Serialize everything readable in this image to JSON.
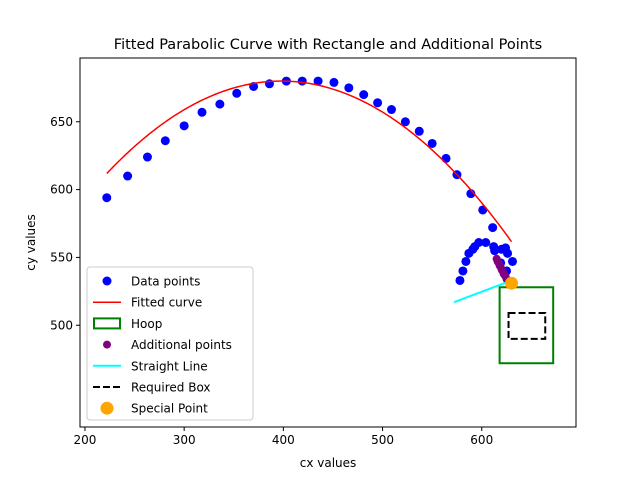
{
  "chart_data": {
    "type": "scatter",
    "title": "Fitted Parabolic Curve with Rectangle and Additional Points",
    "xlabel": "cx values",
    "ylabel": "cy values",
    "xlim": [
      195,
      695
    ],
    "ylim": [
      425,
      697
    ],
    "xticks": [
      200,
      300,
      400,
      500,
      600
    ],
    "yticks": [
      500,
      550,
      600,
      650
    ],
    "grid": false,
    "legend_position": "lower-left",
    "legend": [
      {
        "key": "data",
        "label": "Data points"
      },
      {
        "key": "fit",
        "label": "Fitted curve"
      },
      {
        "key": "hoop",
        "label": "Hoop"
      },
      {
        "key": "additional",
        "label": "Additional points"
      },
      {
        "key": "line",
        "label": "Straight Line"
      },
      {
        "key": "box",
        "label": "Required Box"
      },
      {
        "key": "special",
        "label": "Special Point"
      }
    ],
    "colors": {
      "data": "#0000ff",
      "fit": "#ff0000",
      "hoop": "#008000",
      "additional": "#800080",
      "line": "#00ffff",
      "box": "#000000",
      "special": "#ffa500"
    },
    "data_points": [
      [
        222,
        594
      ],
      [
        243,
        610
      ],
      [
        263,
        624
      ],
      [
        281,
        636
      ],
      [
        300,
        647
      ],
      [
        318,
        657
      ],
      [
        336,
        663
      ],
      [
        353,
        671
      ],
      [
        370,
        676
      ],
      [
        386,
        678
      ],
      [
        403,
        680
      ],
      [
        419,
        680
      ],
      [
        435,
        680
      ],
      [
        451,
        679
      ],
      [
        466,
        675
      ],
      [
        481,
        670
      ],
      [
        495,
        664
      ],
      [
        509,
        659
      ],
      [
        523,
        650
      ],
      [
        537,
        643
      ],
      [
        550,
        634
      ],
      [
        564,
        623
      ],
      [
        575,
        611
      ],
      [
        589,
        597
      ],
      [
        601,
        585
      ],
      [
        611,
        572
      ],
      [
        620,
        556
      ],
      [
        626,
        553
      ],
      [
        624,
        557
      ],
      [
        631,
        547
      ],
      [
        625,
        540
      ],
      [
        619,
        546
      ],
      [
        613,
        555
      ],
      [
        604,
        561
      ],
      [
        597,
        561
      ],
      [
        593,
        558
      ],
      [
        591,
        556
      ],
      [
        587,
        553
      ],
      [
        584,
        547
      ],
      [
        581,
        540
      ],
      [
        578,
        533
      ],
      [
        612,
        558
      ]
    ],
    "fitted_curve": {
      "equation": "y = a*(x - h)^2 + k",
      "a": -0.0022,
      "h": 398,
      "k": 680,
      "x_range": [
        222,
        630
      ]
    },
    "hoop": {
      "x": [
        618,
        672
      ],
      "y": [
        472,
        528
      ]
    },
    "additional_points": [
      [
        615,
        549
      ],
      [
        616,
        547
      ],
      [
        617,
        546
      ],
      [
        618,
        544
      ],
      [
        619,
        543
      ],
      [
        620,
        541
      ],
      [
        621,
        540
      ],
      [
        622,
        538
      ],
      [
        623,
        537
      ],
      [
        624,
        536
      ],
      [
        625,
        534
      ],
      [
        626,
        533
      ]
    ],
    "straight_line": [
      [
        572,
        517
      ],
      [
        630,
        533
      ]
    ],
    "required_box": {
      "x": [
        627,
        664
      ],
      "y": [
        490,
        509
      ]
    },
    "special_point": [
      630,
      531
    ]
  }
}
